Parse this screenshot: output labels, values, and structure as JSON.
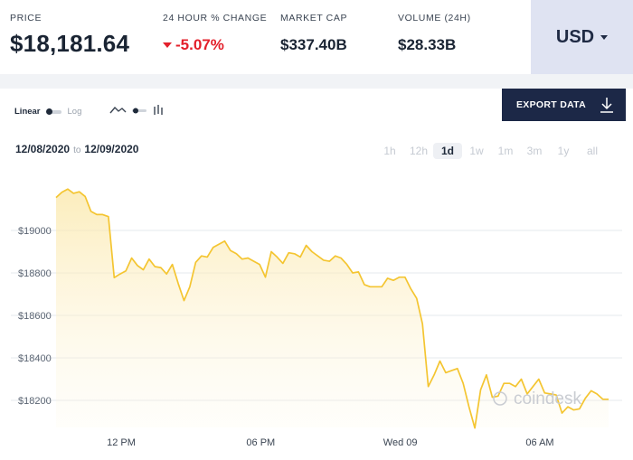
{
  "stats": {
    "price_label": "PRICE",
    "price_value": "$18,181.64",
    "change_label": "24 HOUR % CHANGE",
    "change_value": "-5.07%",
    "change_color": "#e3202b",
    "mcap_label": "MARKET CAP",
    "mcap_value": "$337.40B",
    "volume_label": "VOLUME (24H)",
    "volume_value": "$28.33B"
  },
  "currency": {
    "label": "USD"
  },
  "controls": {
    "scale_linear": "Linear",
    "scale_log": "Log",
    "export_label": "EXPORT DATA",
    "range_from": "12/08/2020",
    "range_sep": "to",
    "range_to": "12/09/2020",
    "periods": [
      "1h",
      "12h",
      "1d",
      "1w",
      "1m",
      "3m",
      "1y",
      "all"
    ],
    "active_period": "1d"
  },
  "colors": {
    "line": "#f4c531",
    "accent": "#1c2847"
  },
  "watermark": "coindesk",
  "chart_data": {
    "type": "area",
    "yticks": [
      "$19000",
      "$18800",
      "$18600",
      "$18400",
      "$18200"
    ],
    "ytick_values": [
      19000,
      18800,
      18600,
      18400,
      18200
    ],
    "xticks": [
      "12 PM",
      "06 PM",
      "Wed 09",
      "06 AM"
    ],
    "xtick_hours": [
      12,
      18,
      24,
      30
    ],
    "x_start_hour": 9.3,
    "ylim": [
      18100,
      19250
    ],
    "grid": true,
    "values": [
      19155,
      19180,
      19195,
      19175,
      19182,
      19160,
      19090,
      19075,
      19075,
      19065,
      18778,
      18795,
      18810,
      18870,
      18835,
      18815,
      18865,
      18830,
      18825,
      18795,
      18840,
      18750,
      18670,
      18735,
      18850,
      18880,
      18875,
      18920,
      18935,
      18950,
      18905,
      18890,
      18865,
      18870,
      18855,
      18840,
      18780,
      18900,
      18875,
      18845,
      18895,
      18890,
      18875,
      18930,
      18900,
      18880,
      18860,
      18855,
      18880,
      18870,
      18840,
      18800,
      18805,
      18745,
      18735,
      18735,
      18735,
      18775,
      18765,
      18780,
      18780,
      18725,
      18680,
      18560,
      18265,
      18320,
      18385,
      18330,
      18340,
      18350,
      18280,
      18170,
      18070,
      18250,
      18320,
      18215,
      18220,
      18280,
      18280,
      18265,
      18300,
      18230,
      18265,
      18300,
      18235,
      18230,
      18225,
      18140,
      18170,
      18155,
      18160,
      18210,
      18245,
      18230,
      18205,
      18205
    ]
  }
}
